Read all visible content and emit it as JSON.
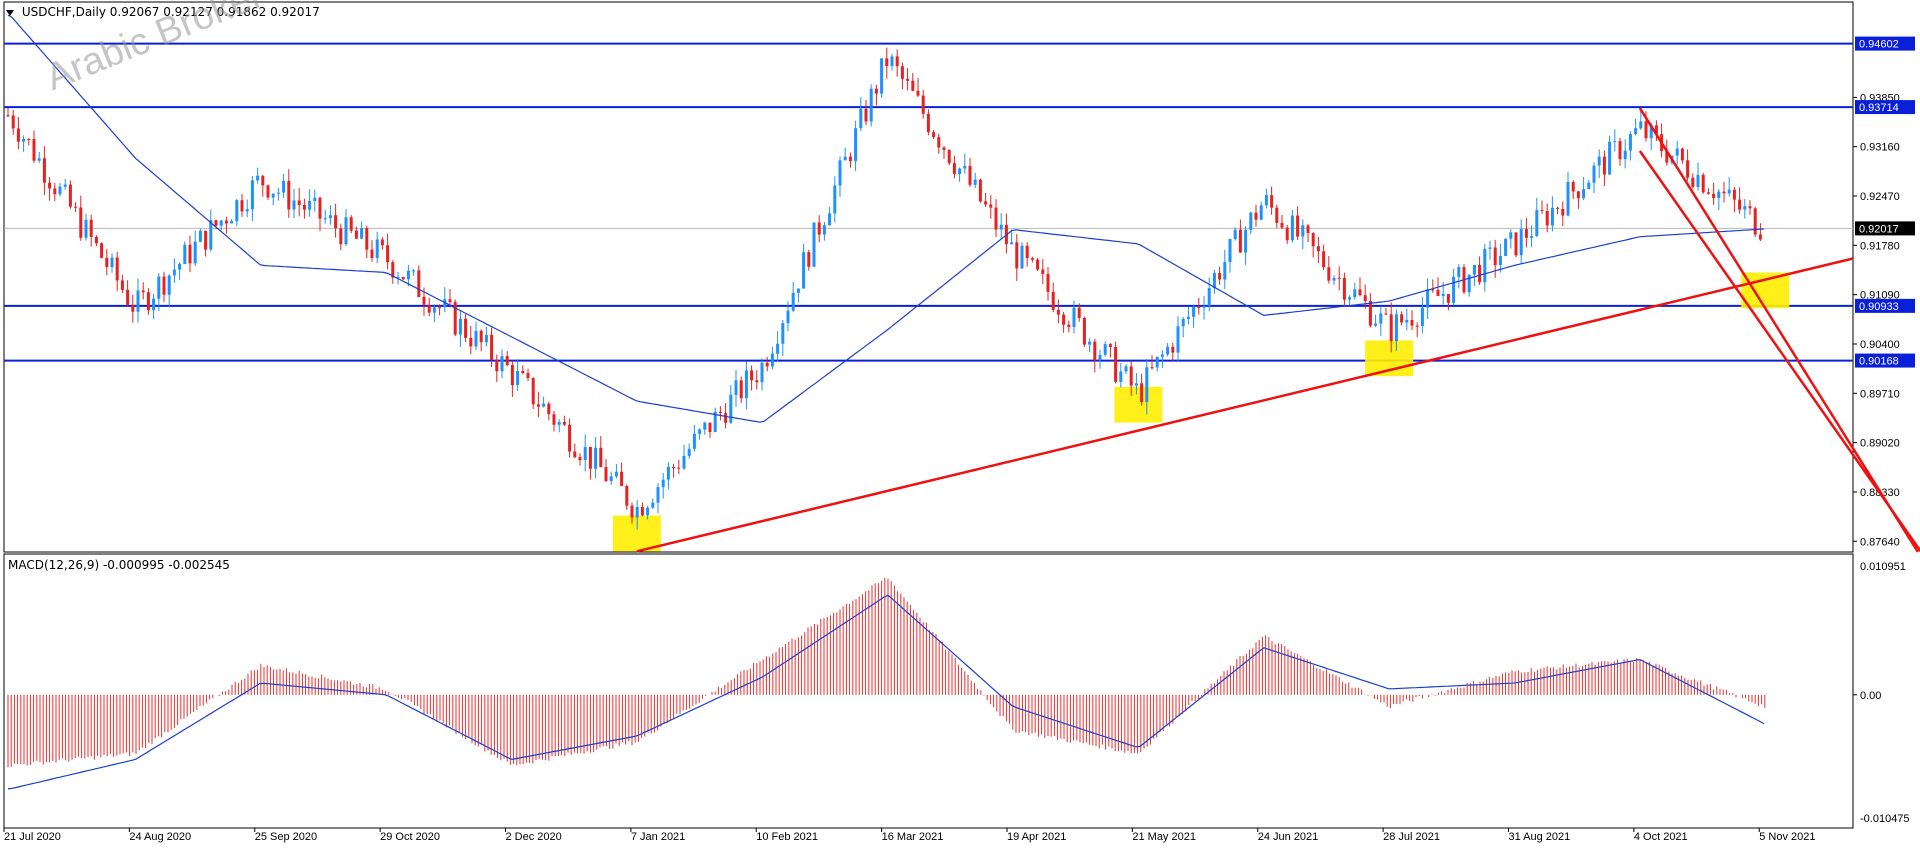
{
  "header": {
    "symbol": "USDCHF,Daily",
    "ohlc": "0.92067 0.92127 0.91862 0.92017"
  },
  "watermark": "Arabic Broker",
  "macd": {
    "label": "MACD(12,26,9) -0.000995 -0.002545",
    "ticks": [
      "0.010951",
      "0.00",
      "-0.010475"
    ]
  },
  "chart_data": [
    {
      "type": "line",
      "subtype": "candlestick",
      "title": "USDCHF,Daily",
      "x_labels": [
        "21 Jul 2020",
        "24 Aug 2020",
        "25 Sep 2020",
        "29 Oct 2020",
        "2 Dec 2020",
        "7 Jan 2021",
        "10 Feb 2021",
        "16 Mar 2021",
        "19 Apr 2021",
        "21 May 2021",
        "24 Jun 2021",
        "28 Jul 2021",
        "31 Aug 2021",
        "4 Oct 2021",
        "5 Nov 2021"
      ],
      "y_ticks": [
        "0.93850",
        "0.93160",
        "0.92470",
        "0.91780",
        "0.91090",
        "0.90400",
        "0.89710",
        "0.89020",
        "0.88330",
        "0.87640"
      ],
      "ylim": [
        0.8749,
        0.951
      ],
      "close_path": [
        {
          "x": "21 Jul 2020",
          "y": 0.936
        },
        {
          "x": "24 Aug 2020",
          "y": 0.909
        },
        {
          "x": "25 Sep 2020",
          "y": 0.927
        },
        {
          "x": "29 Oct 2020",
          "y": 0.916
        },
        {
          "x": "2 Dec 2020",
          "y": 0.9
        },
        {
          "x": "7 Jan 2021",
          "y": 0.881
        },
        {
          "x": "10 Feb 2021",
          "y": 0.901
        },
        {
          "x": "16 Mar 2021",
          "y": 0.944
        },
        {
          "x": "19 Apr 2021",
          "y": 0.917
        },
        {
          "x": "21 May 2021",
          "y": 0.897
        },
        {
          "x": "24 Jun 2021",
          "y": 0.924
        },
        {
          "x": "28 Jul 2021",
          "y": 0.906
        },
        {
          "x": "31 Aug 2021",
          "y": 0.918
        },
        {
          "x": "4 Oct 2021",
          "y": 0.934
        },
        {
          "x": "5 Nov 2021",
          "y": 0.9201
        }
      ],
      "moving_average": [
        {
          "x": "21 Jul 2020",
          "y": 0.95
        },
        {
          "x": "24 Aug 2020",
          "y": 0.93
        },
        {
          "x": "25 Sep 2020",
          "y": 0.915
        },
        {
          "x": "29 Oct 2020",
          "y": 0.914
        },
        {
          "x": "2 Dec 2020",
          "y": 0.905
        },
        {
          "x": "7 Jan 2021",
          "y": 0.896
        },
        {
          "x": "10 Feb 2021",
          "y": 0.893
        },
        {
          "x": "16 Mar 2021",
          "y": 0.906
        },
        {
          "x": "19 Apr 2021",
          "y": 0.92
        },
        {
          "x": "21 May 2021",
          "y": 0.918
        },
        {
          "x": "24 Jun 2021",
          "y": 0.908
        },
        {
          "x": "28 Jul 2021",
          "y": 0.91
        },
        {
          "x": "31 Aug 2021",
          "y": 0.915
        },
        {
          "x": "4 Oct 2021",
          "y": 0.919
        },
        {
          "x": "5 Nov 2021",
          "y": 0.9201
        }
      ],
      "horizontal_levels": [
        {
          "value": 0.94602,
          "label": "0.94602"
        },
        {
          "value": 0.93714,
          "label": "0.93714"
        },
        {
          "value": 0.90933,
          "label": "0.90933"
        },
        {
          "value": 0.90168,
          "label": "0.90168"
        }
      ],
      "current_price": {
        "value": 0.92017,
        "label": "0.92017"
      },
      "trendline": {
        "from": {
          "x": "7 Jan 2021",
          "y": 0.875
        },
        "to": {
          "x": "5 Nov 2021",
          "y": 0.913
        }
      },
      "channel": [
        {
          "from": {
            "x": "4 Oct 2021",
            "y": 0.937
          },
          "to": {
            "x": "5 Nov 2021",
            "y": 0.909
          }
        },
        {
          "from": {
            "x": "4 Oct 2021",
            "y": 0.931
          },
          "to": {
            "x": "5 Nov 2021",
            "y": 0.906
          }
        }
      ],
      "highlights": [
        {
          "x": "7 Jan 2021",
          "y_range": [
            0.875,
            0.88
          ]
        },
        {
          "x": "21 May 2021",
          "y_range": [
            0.893,
            0.898
          ]
        },
        {
          "x": "28 Jul 2021",
          "y_range": [
            0.8995,
            0.9045
          ]
        },
        {
          "x": "5 Nov 2021",
          "y_range": [
            0.909,
            0.914
          ]
        }
      ],
      "colors": {
        "bull": "#1e90ff",
        "bear": "#e82020",
        "ma": "#1a3fd1",
        "level": "#0a1fd8",
        "trend": "#ee1111",
        "highlight": "#ffee00"
      }
    },
    {
      "type": "bar",
      "title": "MACD(12,26,9)",
      "ylim": [
        -0.010475,
        0.010951
      ],
      "histogram": [
        {
          "x": "21 Jul 2020",
          "y": -0.006
        },
        {
          "x": "24 Aug 2020",
          "y": -0.005
        },
        {
          "x": "25 Sep 2020",
          "y": 0.0025
        },
        {
          "x": "29 Oct 2020",
          "y": 0.0005
        },
        {
          "x": "2 Dec 2020",
          "y": -0.006
        },
        {
          "x": "7 Jan 2021",
          "y": -0.004
        },
        {
          "x": "10 Feb 2021",
          "y": 0.003
        },
        {
          "x": "16 Mar 2021",
          "y": 0.01
        },
        {
          "x": "19 Apr 2021",
          "y": -0.003
        },
        {
          "x": "21 May 2021",
          "y": -0.005
        },
        {
          "x": "24 Jun 2021",
          "y": 0.005
        },
        {
          "x": "28 Jul 2021",
          "y": -0.001
        },
        {
          "x": "31 Aug 2021",
          "y": 0.002
        },
        {
          "x": "4 Oct 2021",
          "y": 0.003
        },
        {
          "x": "5 Nov 2021",
          "y": -0.001
        }
      ],
      "signal_line": [
        {
          "x": "21 Jul 2020",
          "y": -0.008
        },
        {
          "x": "24 Aug 2020",
          "y": -0.0055
        },
        {
          "x": "25 Sep 2020",
          "y": 0.001
        },
        {
          "x": "29 Oct 2020",
          "y": 0.0
        },
        {
          "x": "2 Dec 2020",
          "y": -0.0055
        },
        {
          "x": "7 Jan 2021",
          "y": -0.0035
        },
        {
          "x": "10 Feb 2021",
          "y": 0.0015
        },
        {
          "x": "16 Mar 2021",
          "y": 0.0085
        },
        {
          "x": "19 Apr 2021",
          "y": -0.001
        },
        {
          "x": "21 May 2021",
          "y": -0.0045
        },
        {
          "x": "24 Jun 2021",
          "y": 0.004
        },
        {
          "x": "28 Jul 2021",
          "y": 0.0005
        },
        {
          "x": "31 Aug 2021",
          "y": 0.001
        },
        {
          "x": "4 Oct 2021",
          "y": 0.003
        },
        {
          "x": "5 Nov 2021",
          "y": -0.0025
        }
      ]
    }
  ]
}
